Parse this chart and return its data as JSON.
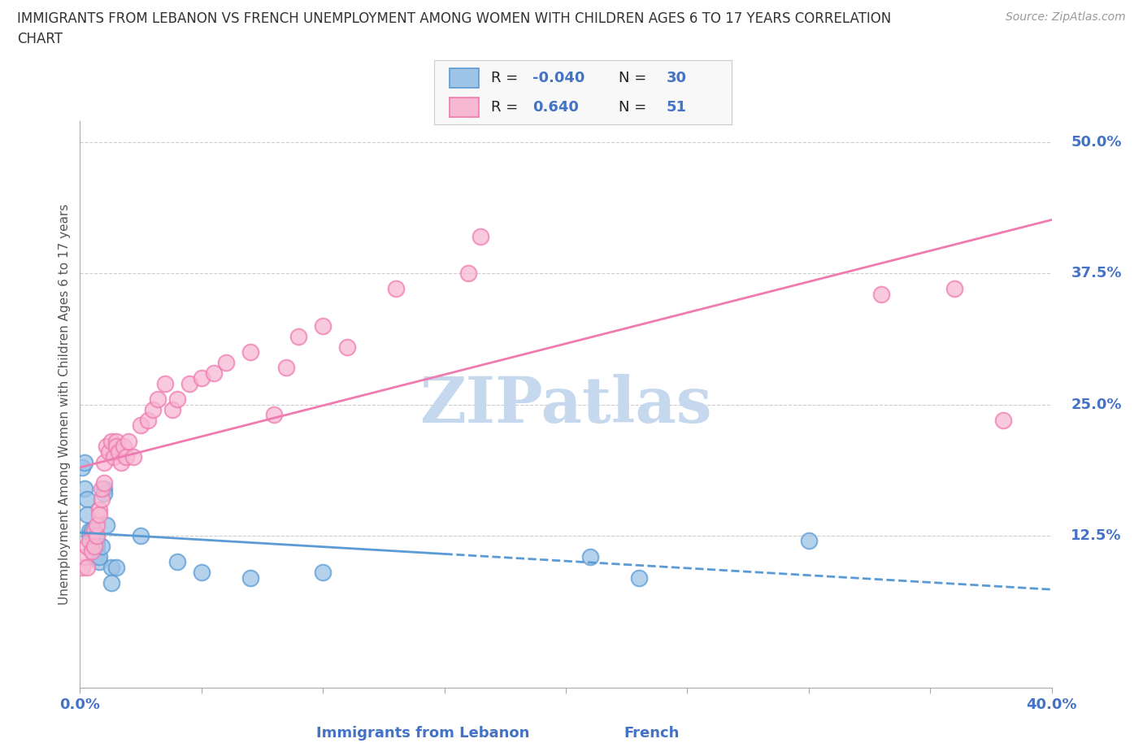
{
  "title_line1": "IMMIGRANTS FROM LEBANON VS FRENCH UNEMPLOYMENT AMONG WOMEN WITH CHILDREN AGES 6 TO 17 YEARS CORRELATION",
  "title_line2": "CHART",
  "source": "Source: ZipAtlas.com",
  "xlabel_blue": "Immigrants from Lebanon",
  "xlabel_pink": "French",
  "ylabel": "Unemployment Among Women with Children Ages 6 to 17 years",
  "xlim": [
    0.0,
    0.4
  ],
  "ylim": [
    -0.02,
    0.52
  ],
  "ytick_vals": [
    0.125,
    0.25,
    0.375,
    0.5
  ],
  "ytick_labels": [
    "12.5%",
    "25.0%",
    "37.5%",
    "50.0%"
  ],
  "blue_R": -0.04,
  "blue_N": 30,
  "pink_R": 0.64,
  "pink_N": 51,
  "blue_color": "#5b9bd5",
  "blue_fill": "#9dc3e6",
  "pink_color": "#f07bb0",
  "pink_fill": "#f7b8d2",
  "blue_scatter": [
    [
      0.001,
      0.19
    ],
    [
      0.002,
      0.195
    ],
    [
      0.002,
      0.17
    ],
    [
      0.003,
      0.16
    ],
    [
      0.003,
      0.145
    ],
    [
      0.004,
      0.13
    ],
    [
      0.004,
      0.125
    ],
    [
      0.005,
      0.13
    ],
    [
      0.005,
      0.12
    ],
    [
      0.006,
      0.115
    ],
    [
      0.006,
      0.105
    ],
    [
      0.007,
      0.12
    ],
    [
      0.007,
      0.115
    ],
    [
      0.008,
      0.1
    ],
    [
      0.008,
      0.105
    ],
    [
      0.009,
      0.115
    ],
    [
      0.01,
      0.17
    ],
    [
      0.01,
      0.165
    ],
    [
      0.011,
      0.135
    ],
    [
      0.013,
      0.095
    ],
    [
      0.013,
      0.08
    ],
    [
      0.015,
      0.095
    ],
    [
      0.025,
      0.125
    ],
    [
      0.04,
      0.1
    ],
    [
      0.05,
      0.09
    ],
    [
      0.07,
      0.085
    ],
    [
      0.1,
      0.09
    ],
    [
      0.21,
      0.105
    ],
    [
      0.23,
      0.085
    ],
    [
      0.3,
      0.12
    ]
  ],
  "pink_scatter": [
    [
      0.001,
      0.095
    ],
    [
      0.002,
      0.105
    ],
    [
      0.003,
      0.095
    ],
    [
      0.003,
      0.115
    ],
    [
      0.004,
      0.12
    ],
    [
      0.005,
      0.11
    ],
    [
      0.006,
      0.115
    ],
    [
      0.006,
      0.13
    ],
    [
      0.007,
      0.125
    ],
    [
      0.007,
      0.135
    ],
    [
      0.008,
      0.15
    ],
    [
      0.008,
      0.145
    ],
    [
      0.009,
      0.16
    ],
    [
      0.009,
      0.17
    ],
    [
      0.01,
      0.175
    ],
    [
      0.01,
      0.195
    ],
    [
      0.011,
      0.21
    ],
    [
      0.012,
      0.205
    ],
    [
      0.013,
      0.215
    ],
    [
      0.014,
      0.2
    ],
    [
      0.015,
      0.215
    ],
    [
      0.015,
      0.21
    ],
    [
      0.016,
      0.205
    ],
    [
      0.017,
      0.195
    ],
    [
      0.018,
      0.21
    ],
    [
      0.019,
      0.2
    ],
    [
      0.02,
      0.215
    ],
    [
      0.022,
      0.2
    ],
    [
      0.025,
      0.23
    ],
    [
      0.028,
      0.235
    ],
    [
      0.03,
      0.245
    ],
    [
      0.032,
      0.255
    ],
    [
      0.035,
      0.27
    ],
    [
      0.038,
      0.245
    ],
    [
      0.04,
      0.255
    ],
    [
      0.045,
      0.27
    ],
    [
      0.05,
      0.275
    ],
    [
      0.055,
      0.28
    ],
    [
      0.06,
      0.29
    ],
    [
      0.07,
      0.3
    ],
    [
      0.08,
      0.24
    ],
    [
      0.085,
      0.285
    ],
    [
      0.09,
      0.315
    ],
    [
      0.1,
      0.325
    ],
    [
      0.11,
      0.305
    ],
    [
      0.13,
      0.36
    ],
    [
      0.16,
      0.375
    ],
    [
      0.165,
      0.41
    ],
    [
      0.33,
      0.355
    ],
    [
      0.36,
      0.36
    ],
    [
      0.38,
      0.235
    ]
  ],
  "watermark": "ZIPatlas",
  "watermark_color": "#c5d8ee",
  "background_color": "#ffffff",
  "grid_color": "#cccccc"
}
